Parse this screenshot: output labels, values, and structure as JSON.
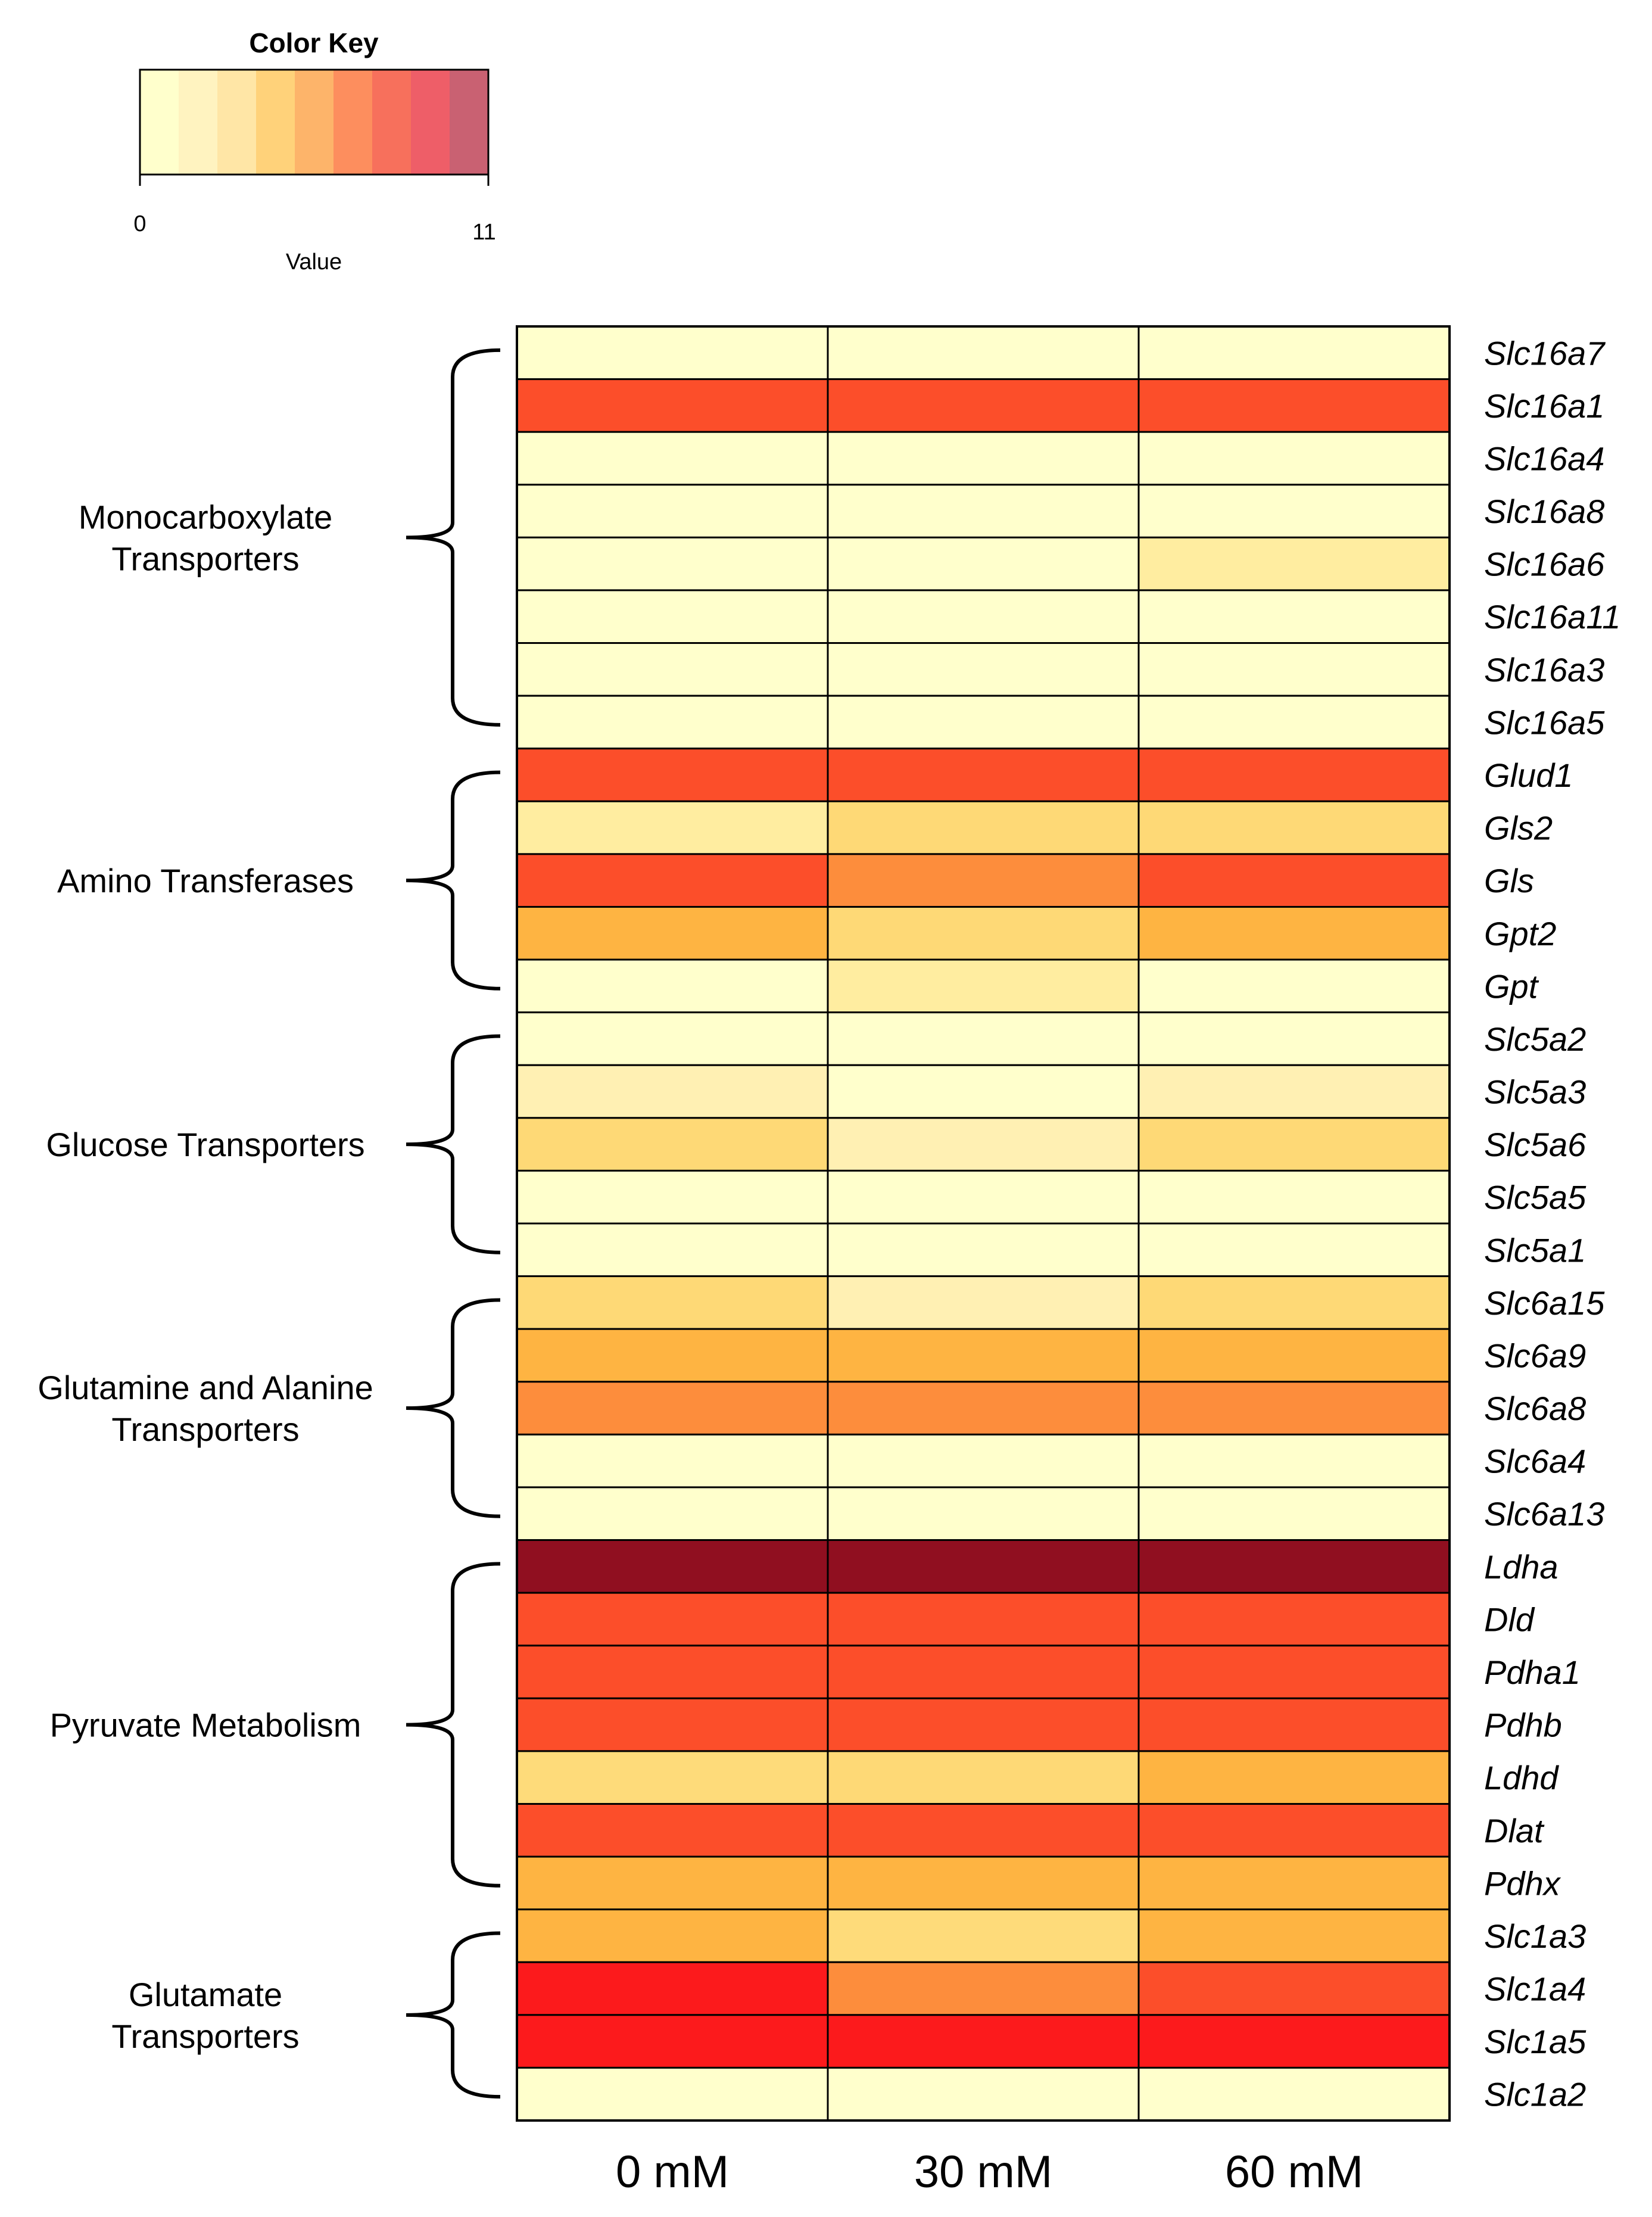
{
  "chart_data": {
    "type": "heatmap",
    "columns": [
      "0 mM",
      "30 mM",
      "60 mM"
    ],
    "color_key": {
      "title": "Color Key",
      "min_label": "0",
      "max_label": "11",
      "value_label": "Value",
      "range": [
        0,
        11
      ],
      "colors": [
        "#FFFFCC",
        "#FFF3C0",
        "#FFE6A6",
        "#FFD27A",
        "#FDB46A",
        "#FD8E5E",
        "#F7705C",
        "#EE5E68",
        "#C96172"
      ]
    },
    "rows": [
      {
        "gene": "Slc16a7",
        "values": [
          0.5,
          0.5,
          0.5
        ]
      },
      {
        "gene": "Slc16a1",
        "values": [
          7.5,
          7.5,
          7.5
        ]
      },
      {
        "gene": "Slc16a4",
        "values": [
          0.5,
          0.5,
          0.5
        ]
      },
      {
        "gene": "Slc16a8",
        "values": [
          0.5,
          0.5,
          0.5
        ]
      },
      {
        "gene": "Slc16a6",
        "values": [
          0.5,
          0.5,
          2.0
        ]
      },
      {
        "gene": "Slc16a11",
        "values": [
          0.5,
          0.5,
          0.5
        ]
      },
      {
        "gene": "Slc16a3",
        "values": [
          0.5,
          0.5,
          0.5
        ]
      },
      {
        "gene": "Slc16a5",
        "values": [
          0.5,
          0.5,
          0.5
        ]
      },
      {
        "gene": "Glud1",
        "values": [
          7.5,
          7.5,
          7.5
        ]
      },
      {
        "gene": "Gls2",
        "values": [
          2.0,
          3.5,
          3.5
        ]
      },
      {
        "gene": "Gls",
        "values": [
          7.5,
          6.5,
          7.5
        ]
      },
      {
        "gene": "Gpt2",
        "values": [
          4.5,
          3.5,
          4.5
        ]
      },
      {
        "gene": "Gpt",
        "values": [
          0.5,
          2.0,
          0.5
        ]
      },
      {
        "gene": "Slc5a2",
        "values": [
          0.5,
          0.5,
          0.5
        ]
      },
      {
        "gene": "Slc5a3",
        "values": [
          1.5,
          0.5,
          1.5
        ]
      },
      {
        "gene": "Slc5a6",
        "values": [
          3.5,
          1.5,
          3.5
        ]
      },
      {
        "gene": "Slc5a5",
        "values": [
          0.5,
          0.5,
          0.5
        ]
      },
      {
        "gene": "Slc5a1",
        "values": [
          0.5,
          0.5,
          0.5
        ]
      },
      {
        "gene": "Slc6a15",
        "values": [
          3.5,
          1.5,
          3.5
        ]
      },
      {
        "gene": "Slc6a9",
        "values": [
          4.5,
          4.5,
          4.5
        ]
      },
      {
        "gene": "Slc6a8",
        "values": [
          6.5,
          6.5,
          6.5
        ]
      },
      {
        "gene": "Slc6a4",
        "values": [
          0.5,
          0.5,
          0.5
        ]
      },
      {
        "gene": "Slc6a13",
        "values": [
          0.5,
          0.5,
          0.5
        ]
      },
      {
        "gene": "Ldha",
        "values": [
          10.5,
          10.5,
          10.5
        ]
      },
      {
        "gene": "Dld",
        "values": [
          7.5,
          7.5,
          7.5
        ]
      },
      {
        "gene": "Pdha1",
        "values": [
          7.5,
          7.5,
          7.5
        ]
      },
      {
        "gene": "Pdhb",
        "values": [
          7.5,
          7.5,
          7.5
        ]
      },
      {
        "gene": "Ldhd",
        "values": [
          3.0,
          3.5,
          4.5
        ]
      },
      {
        "gene": "Dlat",
        "values": [
          7.5,
          7.5,
          7.5
        ]
      },
      {
        "gene": "Pdhx",
        "values": [
          4.5,
          4.5,
          4.5
        ]
      },
      {
        "gene": "Slc1a3",
        "values": [
          4.5,
          3.0,
          4.5
        ]
      },
      {
        "gene": "Slc1a4",
        "values": [
          9.0,
          6.5,
          7.5
        ]
      },
      {
        "gene": "Slc1a5",
        "values": [
          9.0,
          9.0,
          9.0
        ]
      },
      {
        "gene": "Slc1a2",
        "values": [
          0.5,
          0.5,
          0.5
        ]
      }
    ],
    "groups": [
      {
        "name": [
          "Monocarboxylate",
          "Transporters"
        ],
        "start": 0,
        "end": 7
      },
      {
        "name": [
          "Amino Transferases"
        ],
        "start": 8,
        "end": 12
      },
      {
        "name": [
          "Glucose Transporters"
        ],
        "start": 13,
        "end": 17
      },
      {
        "name": [
          "Glutamine and Alanine",
          "Transporters"
        ],
        "start": 18,
        "end": 22
      },
      {
        "name": [
          "Pyruvate Metabolism"
        ],
        "start": 23,
        "end": 29
      },
      {
        "name": [
          "Glutamate",
          "Transporters"
        ],
        "start": 30,
        "end": 33
      }
    ],
    "cell_colors": {
      "0.5": "#FFFFCC",
      "1.5": "#FFF0B3",
      "2.0": "#FFEDA0",
      "3.0": "#FEDB7A",
      "3.5": "#FED976",
      "4.5": "#FEB442",
      "6.5": "#FD8D3C",
      "7.5": "#FC4E2A",
      "9.0": "#FC1A1C",
      "10.5": "#900F20"
    }
  }
}
